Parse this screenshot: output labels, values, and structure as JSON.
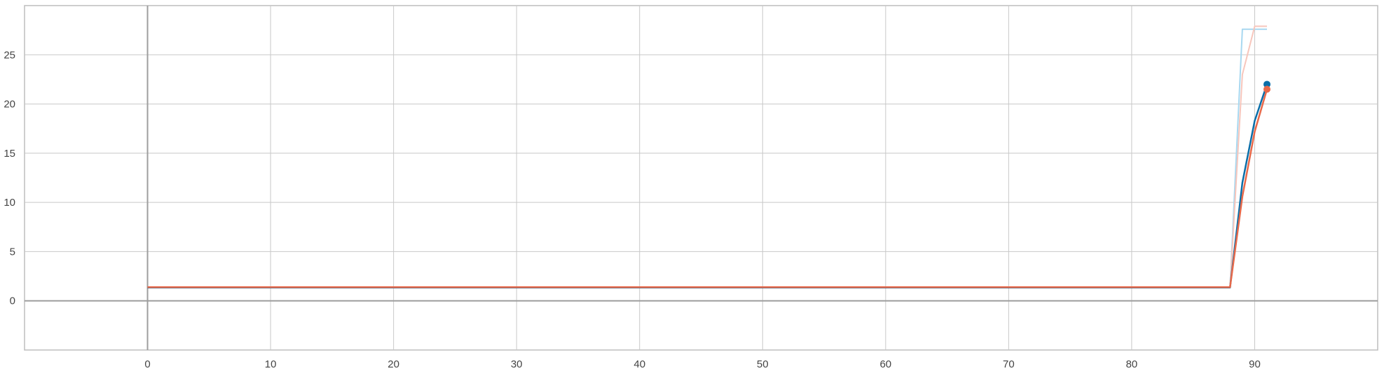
{
  "chart_data": {
    "type": "line",
    "title": "",
    "xlabel": "",
    "ylabel": "",
    "xlim": [
      -10,
      100
    ],
    "ylim": [
      -5,
      30
    ],
    "x_ticks": [
      0,
      10,
      20,
      30,
      40,
      50,
      60,
      70,
      80,
      90
    ],
    "y_ticks": [
      0,
      5,
      10,
      15,
      20,
      25
    ],
    "grid": true,
    "legend": "none",
    "series": [
      {
        "color": "#a8d8f0",
        "style": "raw",
        "points": [
          [
            0,
            1.4
          ],
          [
            88,
            1.4
          ],
          [
            89,
            27.6
          ],
          [
            91,
            27.6
          ]
        ]
      },
      {
        "color": "#f7c6bc",
        "style": "raw",
        "points": [
          [
            0,
            1.4
          ],
          [
            88,
            1.4
          ],
          [
            89,
            23.0
          ],
          [
            90,
            27.9
          ],
          [
            91,
            27.9
          ]
        ]
      },
      {
        "color": "#0a6ea8",
        "style": "smoothed",
        "points": [
          [
            0,
            1.35
          ],
          [
            88,
            1.35
          ],
          [
            89,
            12.0
          ],
          [
            90,
            18.3
          ],
          [
            91,
            22.0
          ]
        ]
      },
      {
        "color": "#e8694a",
        "style": "smoothed",
        "points": [
          [
            0,
            1.38
          ],
          [
            88,
            1.38
          ],
          [
            89,
            10.6
          ],
          [
            90,
            17.2
          ],
          [
            91,
            21.5
          ]
        ]
      }
    ]
  }
}
